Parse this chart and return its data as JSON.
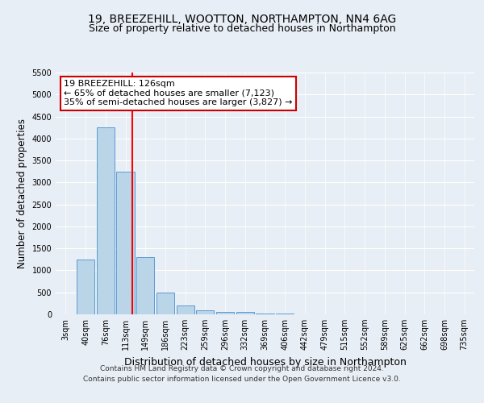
{
  "title": "19, BREEZEHILL, WOOTTON, NORTHAMPTON, NN4 6AG",
  "subtitle": "Size of property relative to detached houses in Northampton",
  "xlabel": "Distribution of detached houses by size in Northampton",
  "ylabel": "Number of detached properties",
  "footer_line1": "Contains HM Land Registry data © Crown copyright and database right 2024.",
  "footer_line2": "Contains public sector information licensed under the Open Government Licence v3.0.",
  "categories": [
    "3sqm",
    "40sqm",
    "76sqm",
    "113sqm",
    "149sqm",
    "186sqm",
    "223sqm",
    "259sqm",
    "296sqm",
    "332sqm",
    "369sqm",
    "406sqm",
    "442sqm",
    "479sqm",
    "515sqm",
    "552sqm",
    "589sqm",
    "625sqm",
    "662sqm",
    "698sqm",
    "735sqm"
  ],
  "values": [
    0,
    1250,
    4250,
    3250,
    1300,
    500,
    200,
    100,
    60,
    50,
    10,
    10,
    0,
    0,
    0,
    0,
    0,
    0,
    0,
    0,
    0
  ],
  "bar_color": "#bad4e8",
  "bar_edge_color": "#5b9bd5",
  "vline_color": "#ff0000",
  "ylim": [
    0,
    5500
  ],
  "yticks": [
    0,
    500,
    1000,
    1500,
    2000,
    2500,
    3000,
    3500,
    4000,
    4500,
    5000,
    5500
  ],
  "annotation_line1": "19 BREEZEHILL: 126sqm",
  "annotation_line2": "← 65% of detached houses are smaller (7,123)",
  "annotation_line3": "35% of semi-detached houses are larger (3,827) →",
  "annotation_box_color": "#ffffff",
  "annotation_box_edge": "#cc0000",
  "bg_color": "#e8eef5",
  "grid_color": "#ffffff",
  "title_fontsize": 10,
  "subtitle_fontsize": 9,
  "ylabel_fontsize": 8.5,
  "xlabel_fontsize": 9,
  "tick_fontsize": 7,
  "annotation_fontsize": 8,
  "footer_fontsize": 6.5
}
